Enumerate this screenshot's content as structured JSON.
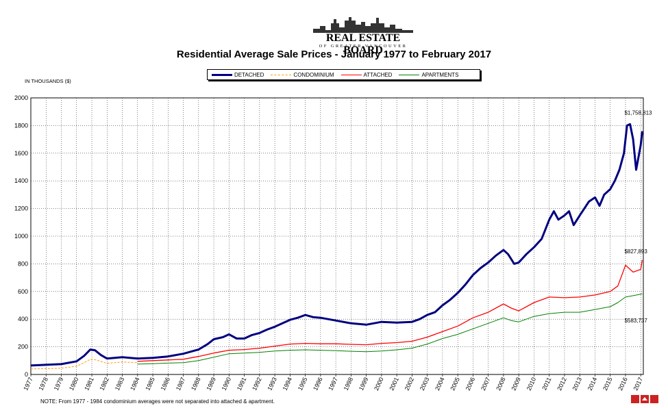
{
  "logo": {
    "name": "REAL ESTATE BOARD",
    "sub": "OF GREATER VANCOUVER"
  },
  "chart_data": {
    "type": "line",
    "title": "Residential Average Sale Prices  -  January 1977 to February 2017",
    "ylabel": "IN THOUSANDS ($)",
    "xlabel": "",
    "ylim": [
      0,
      2000
    ],
    "yticks": [
      0,
      200,
      400,
      600,
      800,
      1000,
      1200,
      1400,
      1600,
      1800,
      2000
    ],
    "xlim": [
      1977,
      2017.17
    ],
    "xticks": [
      "1977",
      "1978",
      "1979",
      "1980",
      "1981",
      "1982",
      "1983",
      "1984",
      "1985",
      "1986",
      "1987",
      "1988",
      "1989",
      "1990",
      "1991",
      "1992",
      "1993",
      "1994",
      "1995",
      "1996",
      "1997",
      "1998",
      "1999",
      "2000",
      "2001",
      "2002",
      "2003",
      "2004",
      "2005",
      "2006",
      "2007",
      "2008",
      "2009",
      "2010",
      "2011",
      "2012",
      "2013",
      "2014",
      "2015",
      "2016",
      "2017"
    ],
    "grid": true,
    "legend_position": "top-center",
    "series": [
      {
        "name": "DETACHED",
        "color": "#000080",
        "dash": "solid",
        "width": 3,
        "x": [
          1977,
          1978,
          1979,
          1980,
          1980.5,
          1980.9,
          1981.2,
          1981.6,
          1982,
          1982.5,
          1983,
          1983.5,
          1984,
          1985,
          1986,
          1987,
          1988,
          1988.6,
          1989,
          1989.6,
          1990,
          1990.5,
          1991,
          1991.5,
          1992,
          1992.5,
          1993,
          1993.5,
          1994,
          1994.5,
          1995,
          1995.5,
          1996,
          1997,
          1998,
          1999,
          2000,
          2001,
          2002,
          2002.5,
          2003,
          2003.5,
          2004,
          2004.5,
          2005,
          2005.5,
          2006,
          2006.5,
          2007,
          2007.5,
          2008,
          2008.3,
          2008.7,
          2009,
          2009.5,
          2010,
          2010.5,
          2011,
          2011.3,
          2011.6,
          2012,
          2012.3,
          2012.6,
          2013,
          2013.3,
          2013.6,
          2014,
          2014.3,
          2014.6,
          2015,
          2015.3,
          2015.6,
          2015.9,
          2016.1,
          2016.3,
          2016.5,
          2016.7,
          2016.9,
          2017,
          2017.1
        ],
        "values": [
          65,
          70,
          75,
          95,
          135,
          180,
          175,
          140,
          115,
          120,
          125,
          120,
          115,
          120,
          130,
          150,
          180,
          220,
          255,
          270,
          290,
          260,
          260,
          285,
          300,
          325,
          345,
          370,
          395,
          410,
          430,
          415,
          410,
          390,
          370,
          360,
          380,
          375,
          380,
          400,
          430,
          450,
          500,
          540,
          590,
          650,
          720,
          770,
          810,
          860,
          900,
          870,
          800,
          810,
          870,
          920,
          980,
          1120,
          1180,
          1120,
          1150,
          1180,
          1080,
          1150,
          1200,
          1250,
          1280,
          1220,
          1300,
          1340,
          1400,
          1480,
          1600,
          1800,
          1810,
          1700,
          1480,
          1600,
          1660,
          1758.813
        ]
      },
      {
        "name": "CONDOMINIUM",
        "color": "#ff9900",
        "dash": "dashed",
        "width": 1,
        "x": [
          1977,
          1978,
          1979,
          1980,
          1980.5,
          1980.9,
          1981.3,
          1981.7,
          1982,
          1982.5,
          1983,
          1983.5,
          1984
        ],
        "values": [
          40,
          42,
          45,
          60,
          85,
          110,
          105,
          90,
          80,
          85,
          90,
          88,
          85
        ]
      },
      {
        "name": "ATTACHED",
        "color": "#ff0000",
        "dash": "solid",
        "width": 1.3,
        "x": [
          1984,
          1985,
          1986,
          1987,
          1988,
          1989,
          1990,
          1991,
          1992,
          1993,
          1994,
          1995,
          1996,
          1997,
          1998,
          1999,
          2000,
          2001,
          2002,
          2003,
          2004,
          2005,
          2006,
          2007,
          2008,
          2008.5,
          2009,
          2010,
          2011,
          2012,
          2013,
          2014,
          2015,
          2015.5,
          2016,
          2016.5,
          2017,
          2017.1
        ],
        "values": [
          95,
          100,
          105,
          110,
          130,
          155,
          175,
          180,
          190,
          205,
          220,
          225,
          222,
          222,
          218,
          215,
          225,
          230,
          240,
          270,
          310,
          350,
          410,
          450,
          510,
          480,
          460,
          520,
          560,
          555,
          560,
          575,
          600,
          640,
          790,
          740,
          760,
          827.893
        ]
      },
      {
        "name": "APARTMENTS",
        "color": "#008000",
        "dash": "solid",
        "width": 1,
        "x": [
          1984,
          1985,
          1986,
          1987,
          1988,
          1989,
          1990,
          1991,
          1992,
          1993,
          1994,
          1995,
          1996,
          1997,
          1998,
          1999,
          2000,
          2001,
          2002,
          2003,
          2004,
          2005,
          2006,
          2007,
          2008,
          2008.5,
          2009,
          2010,
          2011,
          2012,
          2013,
          2014,
          2015,
          2015.5,
          2016,
          2016.5,
          2017,
          2017.1
        ],
        "values": [
          75,
          78,
          82,
          85,
          100,
          125,
          150,
          155,
          160,
          170,
          175,
          178,
          175,
          172,
          168,
          165,
          170,
          178,
          190,
          220,
          260,
          290,
          330,
          370,
          410,
          390,
          380,
          420,
          440,
          450,
          450,
          470,
          490,
          520,
          560,
          570,
          580,
          583.737
        ]
      }
    ],
    "annotations": [
      "$1,758,813",
      "$827,893",
      "$583,737"
    ]
  },
  "note": "NOTE:  From 1977 - 1984 condominium averages were not separated into attached & apartment.",
  "badge": {
    "label": "MLS"
  }
}
